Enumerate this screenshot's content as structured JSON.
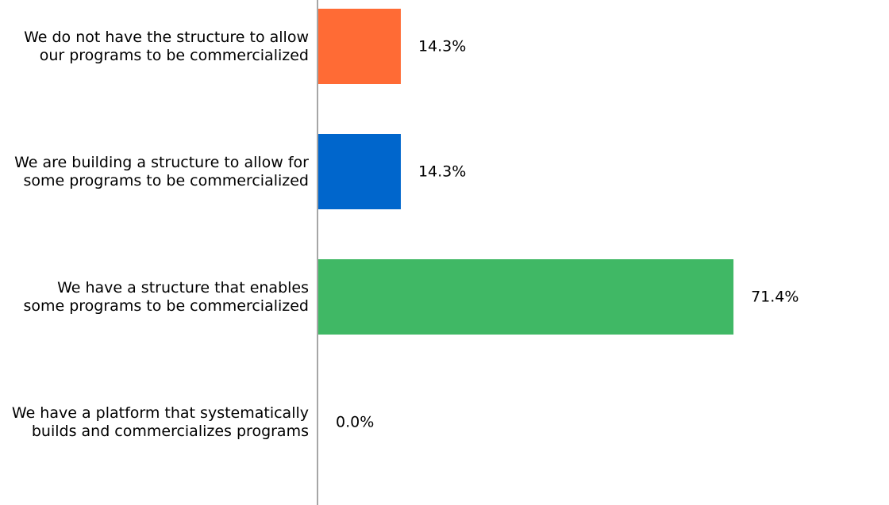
{
  "chart_data": {
    "type": "bar",
    "orientation": "horizontal",
    "title": "",
    "xlabel": "",
    "ylabel": "",
    "xlim": [
      0,
      100
    ],
    "grid": false,
    "legend": "none",
    "categories": [
      [
        "We do not have the structure to allow",
        "our programs to be commercialized"
      ],
      [
        "We are building a structure to allow for",
        "some programs to be commercialized"
      ],
      [
        "We have a structure that enables",
        "some programs to be commercialized"
      ],
      [
        "We have a platform that systematically",
        "builds and commercializes programs"
      ]
    ],
    "values": [
      14.3,
      14.3,
      71.4,
      0.0
    ],
    "data_labels": [
      "14.3%",
      "14.3%",
      "71.4%",
      "0.0%"
    ],
    "colors": [
      "#ff6b35",
      "#0066cc",
      "#40b865",
      "#999999"
    ],
    "axis_color": "#a6a6a6"
  }
}
